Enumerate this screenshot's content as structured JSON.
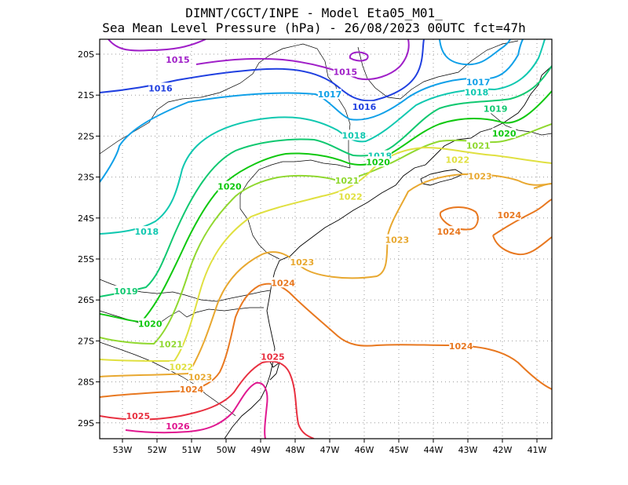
{
  "title": {
    "line1": "DIMNT/CGCT/INPE -  Model Eta05_M01_",
    "line2": "Sea Mean Level Pressure (hPa) - 26/08/2023 00UTC fct=47h"
  },
  "axes": {
    "lat_labels": [
      "20S",
      "21S",
      "22S",
      "23S",
      "24S",
      "25S",
      "26S",
      "27S",
      "28S",
      "29S"
    ],
    "lon_labels": [
      "53W",
      "52W",
      "51W",
      "50W",
      "49W",
      "48W",
      "47W",
      "46W",
      "45W",
      "44W",
      "43W",
      "42W",
      "41W"
    ]
  },
  "colors": {
    "1015": "#a020c8",
    "1016": "#2040e0",
    "1017": "#10a0e8",
    "1018": "#10c8b0",
    "1019": "#10c870",
    "1020": "#10c810",
    "1021": "#90d830",
    "1022": "#e0e040",
    "1023": "#e8a830",
    "1024": "#e87820",
    "1025": "#e83040",
    "1026": "#e01890"
  },
  "isobar_labels": [
    {
      "text": "1015",
      "level": "1015",
      "lon": -51.4,
      "lat": -20.15
    },
    {
      "text": "1015",
      "level": "1015",
      "lon": -46.55,
      "lat": -20.45
    },
    {
      "text": "1016",
      "level": "1016",
      "lon": -51.9,
      "lat": -20.85
    },
    {
      "text": "1016",
      "level": "1016",
      "lon": -46.0,
      "lat": -21.3
    },
    {
      "text": "1017",
      "level": "1017",
      "lon": -47.0,
      "lat": -21.0
    },
    {
      "text": "1017",
      "level": "1017",
      "lon": -42.7,
      "lat": -20.7
    },
    {
      "text": "1018",
      "level": "1018",
      "lon": -46.3,
      "lat": -22.0
    },
    {
      "text": "1018",
      "level": "1018",
      "lon": -42.75,
      "lat": -20.95
    },
    {
      "text": "1018",
      "level": "1018",
      "lon": -45.55,
      "lat": -22.5
    },
    {
      "text": "1018",
      "level": "1018",
      "lon": -52.3,
      "lat": -24.35
    },
    {
      "text": "1019",
      "level": "1019",
      "lon": -42.2,
      "lat": -21.35
    },
    {
      "text": "1019",
      "level": "1019",
      "lon": -52.9,
      "lat": -25.8
    },
    {
      "text": "1020",
      "level": "1020",
      "lon": -41.95,
      "lat": -21.95
    },
    {
      "text": "1020",
      "level": "1020",
      "lon": -45.6,
      "lat": -22.65
    },
    {
      "text": "1020",
      "level": "1020",
      "lon": -49.9,
      "lat": -23.25
    },
    {
      "text": "1020",
      "level": "1020",
      "lon": -52.2,
      "lat": -26.6
    },
    {
      "text": "1021",
      "level": "1021",
      "lon": -42.7,
      "lat": -22.25
    },
    {
      "text": "1021",
      "level": "1021",
      "lon": -46.5,
      "lat": -23.1
    },
    {
      "text": "1021",
      "level": "1021",
      "lon": -51.6,
      "lat": -27.1
    },
    {
      "text": "1022",
      "level": "1022",
      "lon": -43.3,
      "lat": -22.6
    },
    {
      "text": "1022",
      "level": "1022",
      "lon": -46.4,
      "lat": -23.5
    },
    {
      "text": "1022",
      "level": "1022",
      "lon": -51.3,
      "lat": -27.65
    },
    {
      "text": "1023",
      "level": "1023",
      "lon": -42.65,
      "lat": -23.0
    },
    {
      "text": "1023",
      "level": "1023",
      "lon": -45.05,
      "lat": -24.55
    },
    {
      "text": "1023",
      "level": "1023",
      "lon": -47.8,
      "lat": -25.1
    },
    {
      "text": "1023",
      "level": "1023",
      "lon": -50.75,
      "lat": -27.9
    },
    {
      "text": "1024",
      "level": "1024",
      "lon": -41.8,
      "lat": -23.95
    },
    {
      "text": "1024",
      "level": "1024",
      "lon": -43.55,
      "lat": -24.35
    },
    {
      "text": "1024",
      "level": "1024",
      "lon": -48.35,
      "lat": -25.6
    },
    {
      "text": "1024",
      "level": "1024",
      "lon": -43.2,
      "lat": -27.15
    },
    {
      "text": "1024",
      "level": "1024",
      "lon": -51.0,
      "lat": -28.2
    },
    {
      "text": "1025",
      "level": "1025",
      "lon": -48.65,
      "lat": -27.4
    },
    {
      "text": "1025",
      "level": "1025",
      "lon": -52.55,
      "lat": -28.85
    },
    {
      "text": "1026",
      "level": "1026",
      "lon": -51.4,
      "lat": -29.1
    }
  ]
}
